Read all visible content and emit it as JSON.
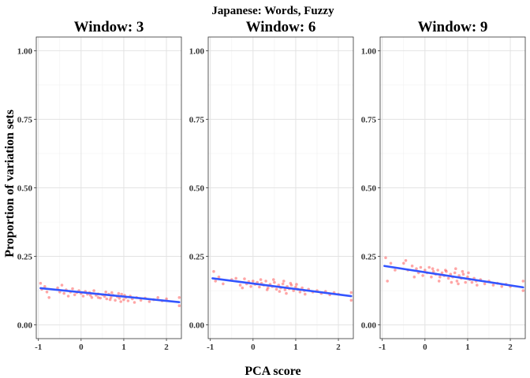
{
  "chart_data": {
    "type": "scatter",
    "title": "Japanese: Words, Fuzzy",
    "xlabel": "PCA score",
    "ylabel": "Proportion of variation sets",
    "xlim": [
      -1.05,
      2.35
    ],
    "ylim": [
      -0.05,
      1.05
    ],
    "x_ticks": [
      -1,
      0,
      1,
      2
    ],
    "y_ticks": [
      0.0,
      0.25,
      0.5,
      0.75,
      1.0
    ],
    "y_tick_labels": [
      "0.00",
      "0.25",
      "0.50",
      "0.75",
      "1.00"
    ],
    "grid": true,
    "point_color": "#ff0000",
    "line_color": "#3355ff",
    "panels": [
      {
        "title": "Window: 3",
        "trend": {
          "x": [
            -0.95,
            2.3
          ],
          "y": [
            0.134,
            0.083
          ]
        },
        "points": [
          [
            -0.95,
            0.152
          ],
          [
            -0.92,
            0.13
          ],
          [
            -0.85,
            0.14
          ],
          [
            -0.8,
            0.12
          ],
          [
            -0.75,
            0.1
          ],
          [
            -0.55,
            0.135
          ],
          [
            -0.5,
            0.12
          ],
          [
            -0.45,
            0.145
          ],
          [
            -0.4,
            0.115
          ],
          [
            -0.35,
            0.128
          ],
          [
            -0.3,
            0.105
          ],
          [
            -0.25,
            0.12
          ],
          [
            -0.2,
            0.132
          ],
          [
            -0.15,
            0.11
          ],
          [
            -0.1,
            0.118
          ],
          [
            -0.05,
            0.125
          ],
          [
            0.0,
            0.115
          ],
          [
            0.05,
            0.105
          ],
          [
            0.1,
            0.122
          ],
          [
            0.15,
            0.112
          ],
          [
            0.2,
            0.118
          ],
          [
            0.25,
            0.1
          ],
          [
            0.3,
            0.125
          ],
          [
            0.35,
            0.108
          ],
          [
            0.4,
            0.113
          ],
          [
            0.45,
            0.098
          ],
          [
            0.5,
            0.11
          ],
          [
            0.55,
            0.104
          ],
          [
            0.6,
            0.095
          ],
          [
            0.65,
            0.112
          ],
          [
            0.7,
            0.1
          ],
          [
            0.75,
            0.108
          ],
          [
            0.8,
            0.09
          ],
          [
            0.85,
            0.103
          ],
          [
            0.9,
            0.097
          ],
          [
            0.95,
            0.112
          ],
          [
            1.0,
            0.092
          ],
          [
            1.05,
            0.1
          ],
          [
            1.1,
            0.088
          ],
          [
            1.15,
            0.105
          ],
          [
            1.2,
            0.095
          ],
          [
            1.3,
            0.1
          ],
          [
            1.4,
            0.09
          ],
          [
            1.5,
            0.098
          ],
          [
            1.6,
            0.085
          ],
          [
            1.7,
            0.092
          ],
          [
            1.8,
            0.1
          ],
          [
            1.9,
            0.088
          ],
          [
            2.0,
            0.095
          ],
          [
            2.3,
            0.07
          ],
          [
            2.3,
            0.1
          ],
          [
            0.72,
            0.118
          ],
          [
            0.68,
            0.092
          ],
          [
            0.88,
            0.115
          ],
          [
            1.02,
            0.108
          ],
          [
            0.4,
            0.1
          ],
          [
            0.22,
            0.108
          ],
          [
            1.25,
            0.082
          ],
          [
            0.58,
            0.12
          ],
          [
            0.93,
            0.085
          ]
        ]
      },
      {
        "title": "Window: 6",
        "trend": {
          "x": [
            -0.95,
            2.3
          ],
          "y": [
            0.17,
            0.105
          ]
        },
        "points": [
          [
            -0.92,
            0.195
          ],
          [
            -0.88,
            0.16
          ],
          [
            -0.8,
            0.175
          ],
          [
            -0.7,
            0.15
          ],
          [
            -0.5,
            0.165
          ],
          [
            -0.4,
            0.17
          ],
          [
            -0.3,
            0.145
          ],
          [
            -0.2,
            0.168
          ],
          [
            -0.15,
            0.15
          ],
          [
            -0.1,
            0.158
          ],
          [
            -0.05,
            0.14
          ],
          [
            0.0,
            0.16
          ],
          [
            0.05,
            0.148
          ],
          [
            0.1,
            0.155
          ],
          [
            0.15,
            0.138
          ],
          [
            0.2,
            0.152
          ],
          [
            0.25,
            0.145
          ],
          [
            0.3,
            0.16
          ],
          [
            0.35,
            0.135
          ],
          [
            0.4,
            0.148
          ],
          [
            0.45,
            0.14
          ],
          [
            0.5,
            0.155
          ],
          [
            0.55,
            0.13
          ],
          [
            0.6,
            0.145
          ],
          [
            0.65,
            0.135
          ],
          [
            0.7,
            0.15
          ],
          [
            0.75,
            0.128
          ],
          [
            0.8,
            0.14
          ],
          [
            0.85,
            0.132
          ],
          [
            0.9,
            0.145
          ],
          [
            0.95,
            0.125
          ],
          [
            1.0,
            0.138
          ],
          [
            1.05,
            0.13
          ],
          [
            1.1,
            0.12
          ],
          [
            1.15,
            0.135
          ],
          [
            1.2,
            0.125
          ],
          [
            1.3,
            0.13
          ],
          [
            1.4,
            0.12
          ],
          [
            1.5,
            0.125
          ],
          [
            1.6,
            0.115
          ],
          [
            1.7,
            0.122
          ],
          [
            1.8,
            0.11
          ],
          [
            1.9,
            0.118
          ],
          [
            2.0,
            0.112
          ],
          [
            2.3,
            0.09
          ],
          [
            2.3,
            0.118
          ],
          [
            0.72,
            0.16
          ],
          [
            0.62,
            0.122
          ],
          [
            0.88,
            0.152
          ],
          [
            0.33,
            0.128
          ],
          [
            1.02,
            0.148
          ],
          [
            0.48,
            0.165
          ],
          [
            -0.25,
            0.135
          ],
          [
            1.22,
            0.112
          ],
          [
            0.78,
            0.115
          ],
          [
            0.18,
            0.165
          ]
        ]
      },
      {
        "title": "Window: 9",
        "trend": {
          "x": [
            -0.95,
            2.3
          ],
          "y": [
            0.215,
            0.137
          ]
        },
        "points": [
          [
            -0.92,
            0.245
          ],
          [
            -0.88,
            0.16
          ],
          [
            -0.8,
            0.225
          ],
          [
            -0.7,
            0.2
          ],
          [
            -0.5,
            0.225
          ],
          [
            -0.45,
            0.235
          ],
          [
            -0.4,
            0.2
          ],
          [
            -0.3,
            0.215
          ],
          [
            -0.2,
            0.205
          ],
          [
            -0.15,
            0.19
          ],
          [
            -0.1,
            0.21
          ],
          [
            -0.05,
            0.18
          ],
          [
            0.0,
            0.2
          ],
          [
            0.05,
            0.19
          ],
          [
            0.1,
            0.21
          ],
          [
            0.15,
            0.175
          ],
          [
            0.2,
            0.195
          ],
          [
            0.25,
            0.185
          ],
          [
            0.3,
            0.2
          ],
          [
            0.35,
            0.175
          ],
          [
            0.4,
            0.19
          ],
          [
            0.45,
            0.18
          ],
          [
            0.5,
            0.195
          ],
          [
            0.55,
            0.17
          ],
          [
            0.6,
            0.185
          ],
          [
            0.65,
            0.175
          ],
          [
            0.7,
            0.19
          ],
          [
            0.75,
            0.16
          ],
          [
            0.8,
            0.18
          ],
          [
            0.85,
            0.17
          ],
          [
            0.9,
            0.185
          ],
          [
            0.95,
            0.155
          ],
          [
            1.0,
            0.175
          ],
          [
            1.05,
            0.165
          ],
          [
            1.1,
            0.155
          ],
          [
            1.15,
            0.17
          ],
          [
            1.2,
            0.16
          ],
          [
            1.3,
            0.165
          ],
          [
            1.4,
            0.15
          ],
          [
            1.5,
            0.16
          ],
          [
            1.6,
            0.145
          ],
          [
            1.7,
            0.152
          ],
          [
            1.8,
            0.14
          ],
          [
            1.9,
            0.148
          ],
          [
            2.0,
            0.14
          ],
          [
            2.3,
            0.125
          ],
          [
            2.3,
            0.16
          ],
          [
            0.72,
            0.205
          ],
          [
            0.62,
            0.155
          ],
          [
            0.88,
            0.195
          ],
          [
            0.33,
            0.16
          ],
          [
            1.02,
            0.19
          ],
          [
            0.48,
            0.2
          ],
          [
            -0.25,
            0.175
          ],
          [
            1.22,
            0.145
          ],
          [
            0.78,
            0.15
          ],
          [
            0.18,
            0.205
          ]
        ]
      }
    ]
  }
}
